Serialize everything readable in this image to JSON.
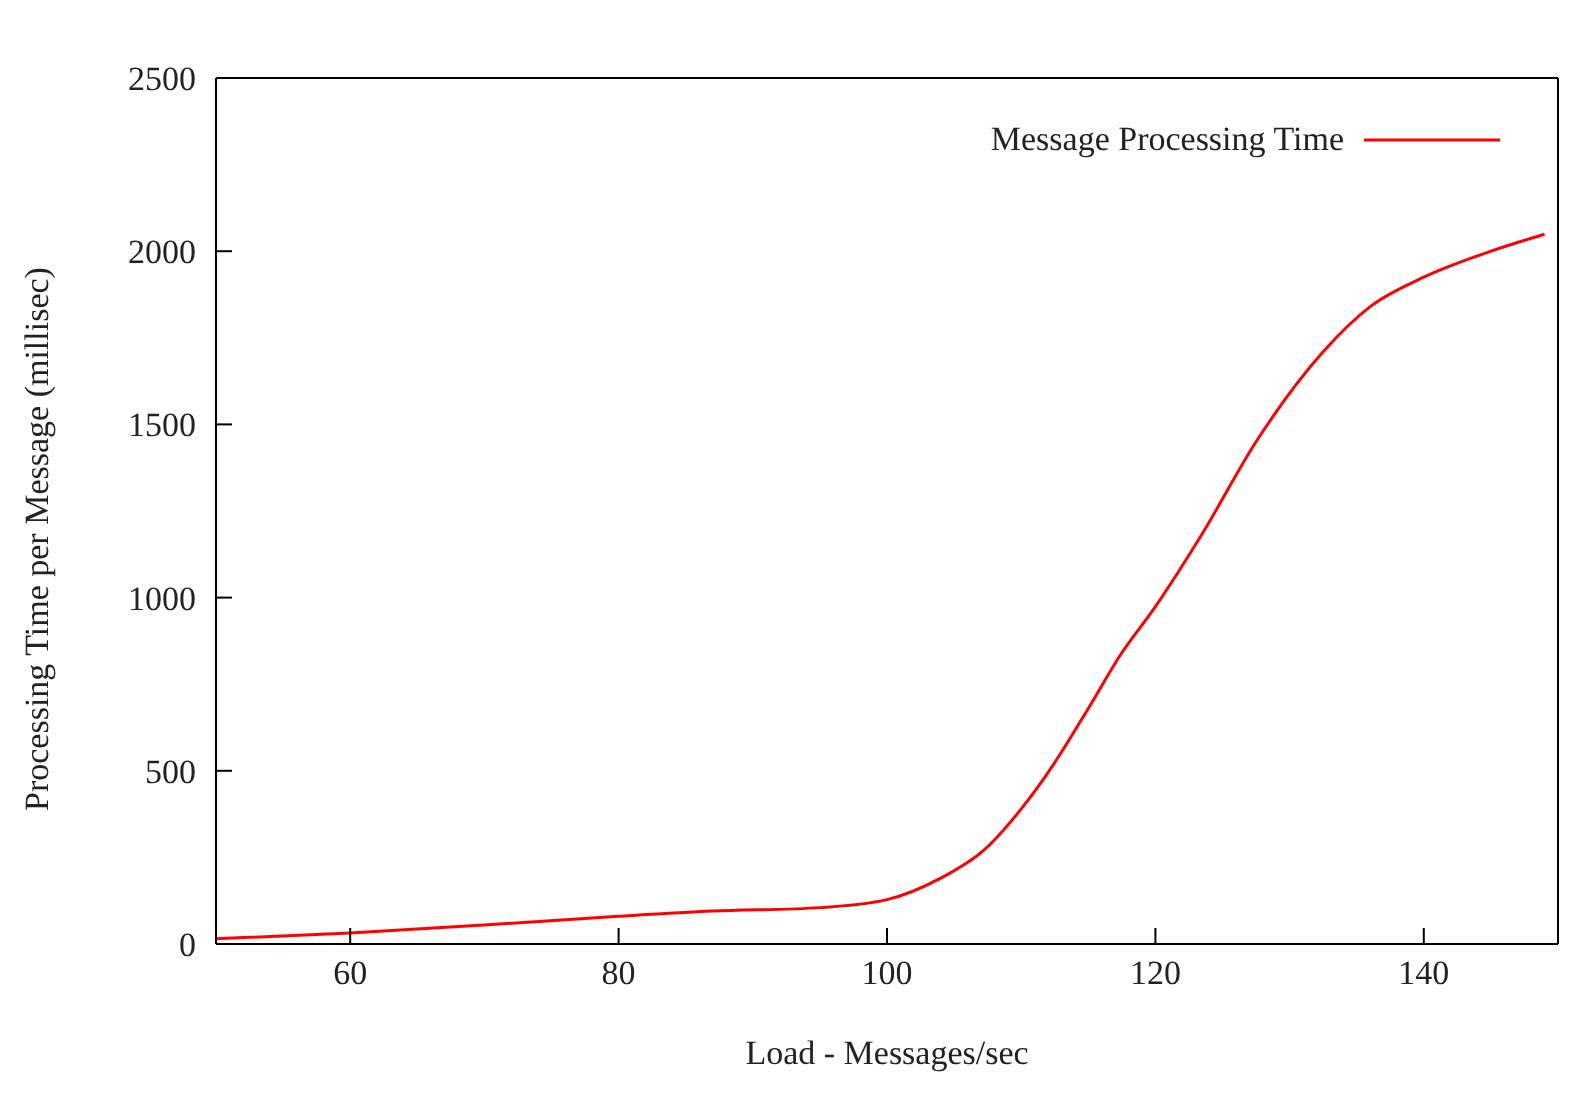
{
  "chart_data": {
    "type": "line",
    "xlabel": "Load - Messages/sec",
    "ylabel": "Processing Time per Message (millisec)",
    "xlim": [
      50,
      150
    ],
    "xticks": [
      60,
      80,
      100,
      120,
      140
    ],
    "ylim": [
      0,
      2500
    ],
    "yticks": [
      0,
      500,
      1000,
      1500,
      2000,
      2500
    ],
    "legend": "top right",
    "marker": "none",
    "line_style": "solid",
    "series": [
      {
        "name": "Message Processing Time",
        "color": "#ff0000",
        "x": [
          50,
          60,
          70,
          80,
          87,
          95,
          100,
          104,
          107.2,
          110,
          112.4,
          115,
          117.4,
          120,
          123.5,
          127.5,
          132.6,
          136,
          140,
          145,
          149
        ],
        "values": [
          15,
          32,
          55,
          80,
          95,
          105,
          128,
          190,
          270,
          390,
          518,
          680,
          835,
          974,
          1185,
          1450,
          1714,
          1840,
          1925,
          2000,
          2049
        ]
      }
    ]
  }
}
